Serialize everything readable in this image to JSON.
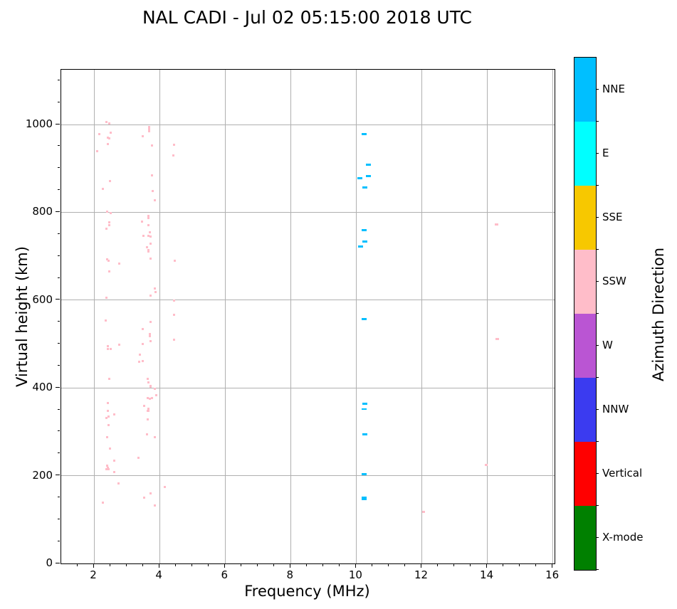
{
  "chart_data": {
    "type": "scatter",
    "title": "NAL CADI - Jul 02 05:15:00 2018 UTC",
    "xlabel": "Frequency (MHz)",
    "ylabel": "Virtual height (km)",
    "xlim": [
      1,
      16.05
    ],
    "ylim": [
      0,
      1125
    ],
    "xticks": [
      2,
      4,
      6,
      8,
      10,
      12,
      14,
      16
    ],
    "yticks": [
      0,
      200,
      400,
      600,
      800,
      1000
    ],
    "x_minor_step": 0.5,
    "y_minor_step": 50,
    "grid": true,
    "grid_color": "#b0b0b0",
    "series": [
      {
        "name": "SSW",
        "color": "#FFBDC9",
        "marker": {
          "w": 3,
          "h": 3
        },
        "points": [
          [
            2.38,
            1006
          ],
          [
            2.46,
            1002
          ],
          [
            3.69,
            990,
            3,
            9
          ],
          [
            2.52,
            982
          ],
          [
            2.16,
            978
          ],
          [
            3.49,
            973
          ],
          [
            2.42,
            971
          ],
          [
            2.46,
            968
          ],
          [
            2.42,
            956
          ],
          [
            4.44,
            954
          ],
          [
            3.77,
            952
          ],
          [
            2.1,
            939
          ],
          [
            4.43,
            930
          ],
          [
            3.77,
            885
          ],
          [
            2.48,
            872
          ],
          [
            2.28,
            853
          ],
          [
            3.78,
            849
          ],
          [
            3.86,
            828
          ],
          [
            2.4,
            801
          ],
          [
            2.52,
            798
          ],
          [
            3.65,
            789,
            3,
            6
          ],
          [
            3.46,
            779
          ],
          [
            2.46,
            777
          ],
          [
            2.46,
            771
          ],
          [
            3.65,
            771
          ],
          [
            2.38,
            762
          ],
          [
            3.7,
            755
          ],
          [
            3.51,
            747
          ],
          [
            3.65,
            747
          ],
          [
            3.72,
            745
          ],
          [
            3.73,
            729
          ],
          [
            3.62,
            721
          ],
          [
            3.65,
            713,
            3,
            5
          ],
          [
            3.73,
            695
          ],
          [
            2.4,
            693
          ],
          [
            4.46,
            689
          ],
          [
            2.45,
            689
          ],
          [
            2.77,
            683
          ],
          [
            2.46,
            665
          ],
          [
            3.85,
            626
          ],
          [
            3.88,
            618
          ],
          [
            3.72,
            610
          ],
          [
            2.38,
            606
          ],
          [
            4.45,
            599
          ],
          [
            4.45,
            567
          ],
          [
            2.36,
            554
          ],
          [
            3.73,
            550
          ],
          [
            3.48,
            534
          ],
          [
            3.7,
            521,
            3,
            6
          ],
          [
            4.45,
            510
          ],
          [
            3.73,
            506
          ],
          [
            3.49,
            500
          ],
          [
            2.77,
            499
          ],
          [
            2.42,
            496
          ],
          [
            2.51,
            489
          ],
          [
            2.42,
            488
          ],
          [
            3.41,
            475
          ],
          [
            3.49,
            461
          ],
          [
            3.37,
            459
          ],
          [
            2.46,
            420
          ],
          [
            3.64,
            421
          ],
          [
            3.66,
            413
          ],
          [
            3.73,
            405
          ],
          [
            3.72,
            403
          ],
          [
            3.85,
            398
          ],
          [
            3.89,
            383
          ],
          [
            3.64,
            377
          ],
          [
            3.77,
            377
          ],
          [
            3.7,
            375
          ],
          [
            2.43,
            366
          ],
          [
            3.54,
            359
          ],
          [
            3.66,
            350,
            3,
            6
          ],
          [
            2.42,
            348
          ],
          [
            3.64,
            347
          ],
          [
            2.62,
            339
          ],
          [
            2.45,
            335
          ],
          [
            2.37,
            332
          ],
          [
            3.63,
            329
          ],
          [
            2.45,
            315
          ],
          [
            3.62,
            295
          ],
          [
            3.85,
            287
          ],
          [
            2.4,
            287
          ],
          [
            2.48,
            261
          ],
          [
            3.36,
            241
          ],
          [
            2.62,
            234
          ],
          [
            2.41,
            223
          ],
          [
            2.42,
            218
          ],
          [
            2.45,
            215
          ],
          [
            2.38,
            214
          ],
          [
            2.62,
            208
          ],
          [
            2.75,
            182
          ],
          [
            4.17,
            174
          ],
          [
            3.72,
            160
          ],
          [
            3.52,
            150
          ],
          [
            2.28,
            138
          ],
          [
            3.85,
            132
          ],
          [
            14.29,
            772,
            5,
            3
          ],
          [
            14.3,
            511,
            5,
            3
          ],
          [
            13.97,
            225,
            4,
            3
          ],
          [
            12.05,
            117,
            4,
            3
          ]
        ]
      },
      {
        "name": "NNE",
        "color": "#00BFFF",
        "marker": {
          "w": 7,
          "h": 3
        },
        "points": [
          [
            10.25,
            978
          ],
          [
            10.38,
            909
          ],
          [
            10.38,
            883
          ],
          [
            10.1,
            877
          ],
          [
            10.27,
            856
          ],
          [
            10.25,
            760
          ],
          [
            10.26,
            733
          ],
          [
            10.14,
            722
          ],
          [
            10.25,
            557
          ],
          [
            10.26,
            364
          ],
          [
            10.25,
            351,
            7,
            2
          ],
          [
            10.26,
            294
          ],
          [
            10.25,
            203
          ],
          [
            10.25,
            148,
            7,
            5
          ]
        ]
      }
    ],
    "colorbar": {
      "label": "Azimuth Direction",
      "categories_top_to_bottom": [
        {
          "label": "NNE",
          "color": "#00BFFF"
        },
        {
          "label": "E",
          "color": "#00FFFF"
        },
        {
          "label": "SSE",
          "color": "#F7C800"
        },
        {
          "label": "SSW",
          "color": "#FFBDC9"
        },
        {
          "label": "W",
          "color": "#BA55D3"
        },
        {
          "label": "NNW",
          "color": "#3B3BF0"
        },
        {
          "label": "Vertical",
          "color": "#FF0000"
        },
        {
          "label": "X-mode",
          "color": "#008000"
        }
      ]
    }
  }
}
